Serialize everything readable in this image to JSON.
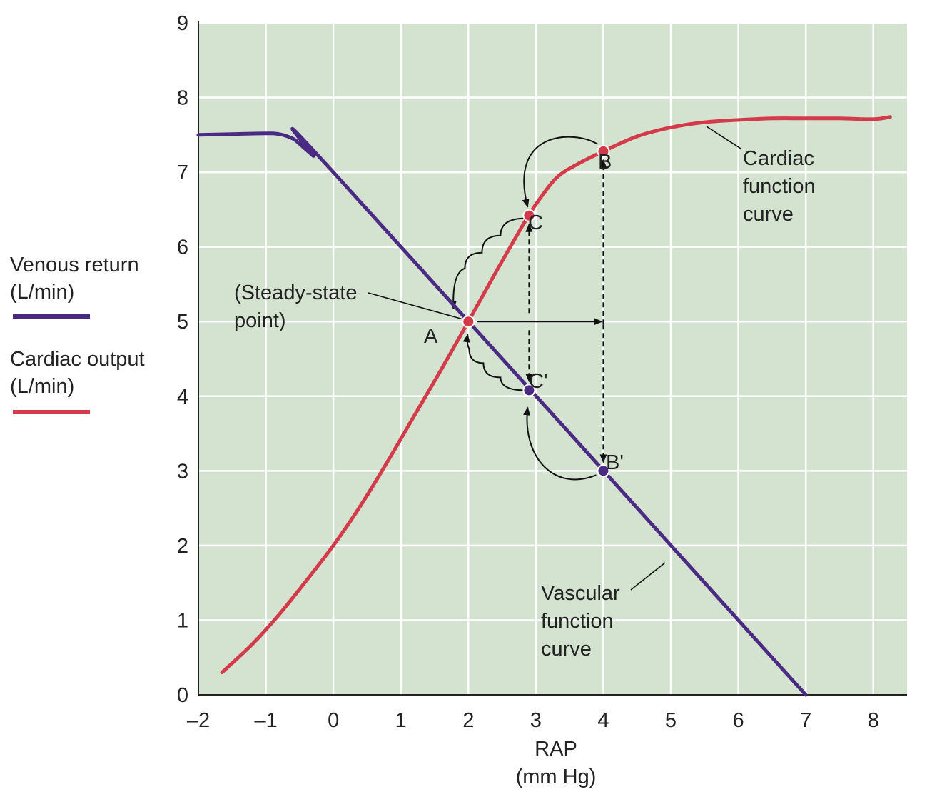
{
  "chart_data": {
    "type": "line",
    "xlabel": "RAP",
    "xlabel_units": "(mm Hg)",
    "ylabel": "",
    "xlim": [
      -2,
      8.5
    ],
    "ylim": [
      0,
      9
    ],
    "x_ticks": [
      "–2",
      "–1",
      "0",
      "1",
      "2",
      "3",
      "4",
      "5",
      "6",
      "7",
      "8"
    ],
    "x_tick_values": [
      -2,
      -1,
      0,
      1,
      2,
      3,
      4,
      5,
      6,
      7,
      8
    ],
    "y_ticks": [
      "0",
      "1",
      "2",
      "3",
      "4",
      "5",
      "6",
      "7",
      "8",
      "9"
    ],
    "y_tick_values": [
      0,
      1,
      2,
      3,
      4,
      5,
      6,
      7,
      8,
      9
    ],
    "grid": true,
    "legend_position": "left",
    "series": [
      {
        "name_line1": "Venous return",
        "name_line2": "(L/min)",
        "color": "#4b2a83",
        "x": [
          -2,
          -1.5,
          -1.0,
          -0.8,
          -0.6,
          -0.5,
          -0.3,
          0,
          7
        ],
        "y": [
          7.5,
          7.51,
          7.52,
          7.51,
          7.45,
          7.38,
          7.22,
          7.0,
          0
        ]
      },
      {
        "name_line1": "Cardiac output",
        "name_line2": "(L/min)",
        "color": "#d33a4a",
        "x": [
          -1.65,
          -1.2,
          -0.8,
          -0.4,
          0,
          0.4,
          0.8,
          1.2,
          1.6,
          2.0,
          2.4,
          2.8,
          3.0,
          3.3,
          3.6,
          4.0,
          4.5,
          5.0,
          5.5,
          6.0,
          6.5,
          7.0,
          7.5,
          8.0,
          8.25
        ],
        "y": [
          0.3,
          0.68,
          1.08,
          1.53,
          2.0,
          2.53,
          3.12,
          3.74,
          4.36,
          5.0,
          5.65,
          6.28,
          6.57,
          6.92,
          7.1,
          7.28,
          7.48,
          7.6,
          7.67,
          7.7,
          7.72,
          7.72,
          7.72,
          7.71,
          7.74
        ]
      }
    ],
    "points": [
      {
        "label": "A",
        "x": 2,
        "y": 5,
        "color": "#d33a4a"
      },
      {
        "label": "B",
        "x": 4,
        "y": 7.28,
        "color": "#d33a4a"
      },
      {
        "label": "C",
        "x": 2.9,
        "y": 6.42,
        "color": "#d33a4a"
      },
      {
        "label": "C'",
        "x": 2.9,
        "y": 4.08,
        "color": "#4b2a83"
      },
      {
        "label": "B'",
        "x": 4,
        "y": 3.0,
        "color": "#4b2a83"
      }
    ],
    "annotations": {
      "steady_state_line1": "(Steady-state",
      "steady_state_line2": "point)",
      "cardiac_curve_line1": "Cardiac",
      "cardiac_curve_line2": "function",
      "cardiac_curve_line3": "curve",
      "vascular_curve_line1": "Vascular",
      "vascular_curve_line2": "function",
      "vascular_curve_line3": "curve"
    },
    "colors": {
      "plot_background": "#d4e3d0",
      "grid": "#ffffff",
      "venous_return": "#4b2a83",
      "cardiac_output": "#d33a4a"
    }
  }
}
